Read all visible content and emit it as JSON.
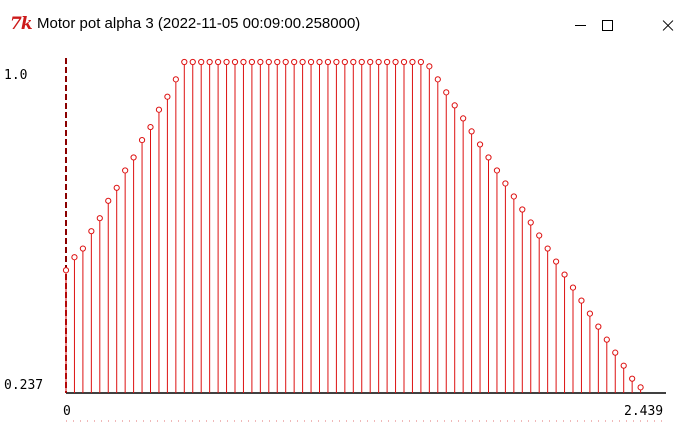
{
  "window": {
    "title": "Motor pot alpha 3 (2022-11-05 00:09:00.258000)",
    "icon": "tk-feather-icon",
    "controls": [
      "minimize",
      "maximize",
      "close"
    ]
  },
  "chart_data": {
    "type": "stem",
    "title": "",
    "xlabel": "",
    "ylabel": "",
    "ylim": [
      0.237,
      1.0
    ],
    "xlim": [
      0,
      2.439
    ],
    "y_top_label": "1.0",
    "y_bottom_label": "0.237",
    "x_left_label": "0",
    "x_right_label": "2.439",
    "grid": false,
    "color": "#dd1111",
    "values": [
      0.52,
      0.55,
      0.57,
      0.61,
      0.64,
      0.68,
      0.71,
      0.75,
      0.78,
      0.82,
      0.85,
      0.89,
      0.92,
      0.96,
      1.0,
      1.0,
      1.0,
      1.0,
      1.0,
      1.0,
      1.0,
      1.0,
      1.0,
      1.0,
      1.0,
      1.0,
      1.0,
      1.0,
      1.0,
      1.0,
      1.0,
      1.0,
      1.0,
      1.0,
      1.0,
      1.0,
      1.0,
      1.0,
      1.0,
      1.0,
      1.0,
      1.0,
      1.0,
      0.99,
      0.96,
      0.93,
      0.9,
      0.87,
      0.84,
      0.81,
      0.78,
      0.75,
      0.72,
      0.69,
      0.66,
      0.63,
      0.6,
      0.57,
      0.54,
      0.51,
      0.48,
      0.45,
      0.42,
      0.39,
      0.36,
      0.33,
      0.3,
      0.27,
      0.25
    ]
  }
}
